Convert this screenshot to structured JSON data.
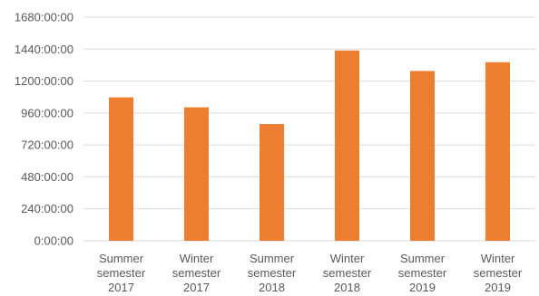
{
  "chart_data": {
    "type": "bar",
    "title": "",
    "xlabel": "",
    "ylabel": "",
    "categories": [
      [
        "Summer",
        "semester",
        "2017"
      ],
      [
        "Winter",
        "semester",
        "2017"
      ],
      [
        "Summer",
        "semester",
        "2018"
      ],
      [
        "Winter",
        "semester",
        "2018"
      ],
      [
        "Summer",
        "semester",
        "2019"
      ],
      [
        "Winter",
        "semester",
        "2019"
      ]
    ],
    "values_hours": [
      1078,
      1003,
      877,
      1430,
      1276,
      1342
    ],
    "ylim_hours": [
      0,
      1680
    ],
    "yticks": [
      "0:00:00",
      "240:00:00",
      "480:00:00",
      "720:00:00",
      "960:00:00",
      "1200:00:00",
      "1440:00:00",
      "1680:00:00"
    ],
    "ytick_values_hours": [
      0,
      240,
      480,
      720,
      960,
      1200,
      1440,
      1680
    ],
    "grid": true,
    "legend": "none",
    "colors": {
      "bar": "#ED7D31",
      "grid": "#D9D9D9",
      "text": "#595959"
    }
  }
}
